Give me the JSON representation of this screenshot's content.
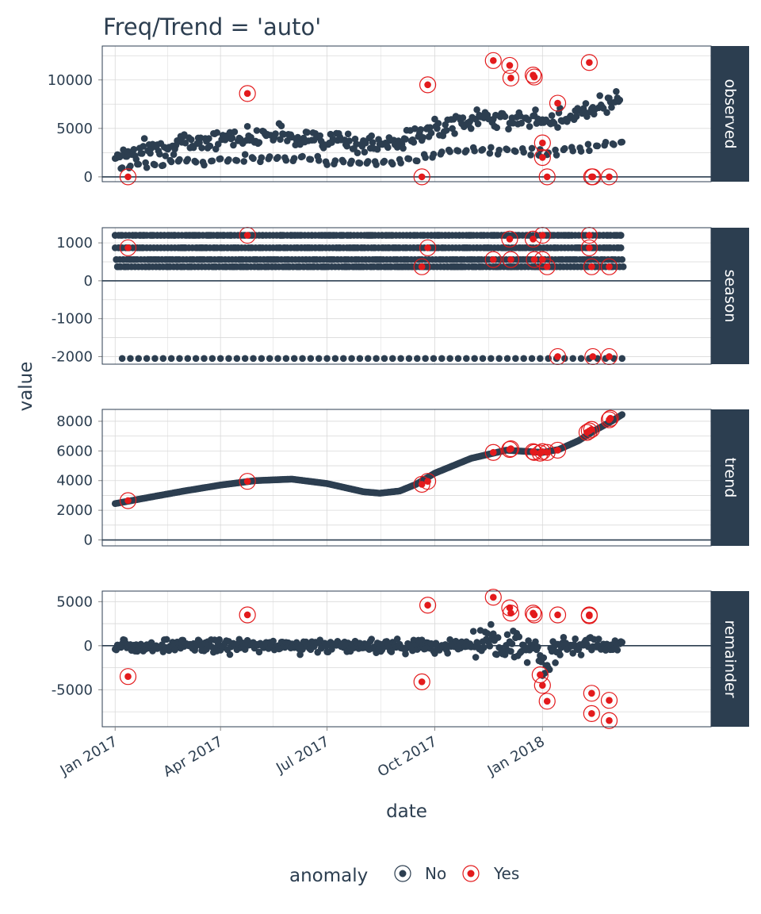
{
  "chart_data": {
    "type": "scatter",
    "title": "Freq/Trend = 'auto'",
    "xlabel": "date",
    "ylabel": "value",
    "x_range": [
      "2016-12-21",
      "2018-05-25"
    ],
    "x_ticks": [
      {
        "date": "2017-01-01",
        "label": "Jan 2017"
      },
      {
        "date": "2017-04-01",
        "label": "Apr 2017"
      },
      {
        "date": "2017-07-01",
        "label": "Jul 2017"
      },
      {
        "date": "2017-10-01",
        "label": "Oct 2017"
      },
      {
        "date": "2018-01-01",
        "label": "Jan 2018"
      }
    ],
    "grid": true,
    "colors": {
      "normal": "#2c3e50",
      "anomaly": "#e31a1c",
      "strip": "#2c3e50",
      "grid": "#d9d9d9",
      "zero_line": "#2c3e50"
    },
    "legend": {
      "title": "anomaly",
      "position": "bottom",
      "entries": [
        {
          "label": "No",
          "color": "#2c3e50"
        },
        {
          "label": "Yes",
          "color": "#e31a1c"
        }
      ]
    },
    "panels": [
      {
        "name": "observed",
        "ylim": [
          -500,
          13500
        ],
        "yticks": [
          0,
          5000,
          10000
        ],
        "ytick_labels": [
          "0",
          "5000",
          "10000"
        ],
        "trend": [
          [
            "2017-01-01",
            2200
          ],
          [
            "2017-02-15",
            3300
          ],
          [
            "2017-04-01",
            3900
          ],
          [
            "2017-05-15",
            4500
          ],
          [
            "2017-07-01",
            3800
          ],
          [
            "2017-08-15",
            3200
          ],
          [
            "2017-09-15",
            4200
          ],
          [
            "2017-10-15",
            5500
          ],
          [
            "2017-11-15",
            6200
          ],
          [
            "2017-12-15",
            5800
          ],
          [
            "2018-01-15",
            6000
          ],
          [
            "2018-02-15",
            7200
          ],
          [
            "2018-03-18",
            8500
          ]
        ],
        "anomalies": [
          [
            "2017-01-12",
            0
          ],
          [
            "2017-04-24",
            8600
          ],
          [
            "2017-09-20",
            0
          ],
          [
            "2017-09-25",
            9500
          ],
          [
            "2017-11-20",
            12000
          ],
          [
            "2017-12-04",
            11500
          ],
          [
            "2017-12-05",
            10200
          ],
          [
            "2017-12-24",
            10500
          ],
          [
            "2017-12-25",
            10300
          ],
          [
            "2018-01-01",
            3500
          ],
          [
            "2018-01-01",
            2000
          ],
          [
            "2018-01-05",
            0
          ],
          [
            "2018-01-14",
            7600
          ],
          [
            "2018-02-10",
            11800
          ],
          [
            "2018-02-12",
            0
          ],
          [
            "2018-02-13",
            0
          ],
          [
            "2018-02-27",
            0
          ]
        ]
      },
      {
        "name": "season",
        "ylim": [
          -2200,
          1400
        ],
        "yticks": [
          -2000,
          -1000,
          0,
          1000
        ],
        "ytick_labels": [
          "-2000",
          "-1000",
          "0",
          "1000"
        ],
        "levels": [
          1200,
          870,
          560,
          370,
          -2050
        ],
        "anomalies": [
          [
            "2017-01-12",
            870
          ],
          [
            "2017-04-24",
            1200
          ],
          [
            "2017-09-20",
            370
          ],
          [
            "2017-09-25",
            870
          ],
          [
            "2017-11-20",
            560
          ],
          [
            "2017-12-04",
            1100
          ],
          [
            "2017-12-05",
            560
          ],
          [
            "2017-12-24",
            1100
          ],
          [
            "2017-12-25",
            560
          ],
          [
            "2018-01-01",
            1200
          ],
          [
            "2018-01-01",
            560
          ],
          [
            "2018-01-05",
            370
          ],
          [
            "2018-01-14",
            -2000
          ],
          [
            "2018-02-10",
            1200
          ],
          [
            "2018-02-10",
            870
          ],
          [
            "2018-02-12",
            370
          ],
          [
            "2018-02-13",
            -2000
          ],
          [
            "2018-02-27",
            370
          ],
          [
            "2018-02-27",
            -2000
          ]
        ]
      },
      {
        "name": "trend",
        "ylim": [
          -400,
          8800
        ],
        "yticks": [
          0,
          2000,
          4000,
          6000,
          8000
        ],
        "ytick_labels": [
          "0",
          "2000",
          "4000",
          "6000",
          "8000"
        ],
        "trend": [
          [
            "2017-01-01",
            2450
          ],
          [
            "2017-02-01",
            2900
          ],
          [
            "2017-03-01",
            3300
          ],
          [
            "2017-04-01",
            3700
          ],
          [
            "2017-05-01",
            4000
          ],
          [
            "2017-06-01",
            4100
          ],
          [
            "2017-07-01",
            3800
          ],
          [
            "2017-08-01",
            3250
          ],
          [
            "2017-08-15",
            3150
          ],
          [
            "2017-09-01",
            3300
          ],
          [
            "2017-09-15",
            3750
          ],
          [
            "2017-10-01",
            4500
          ],
          [
            "2017-11-01",
            5500
          ],
          [
            "2017-12-01",
            6050
          ],
          [
            "2018-01-01",
            5900
          ],
          [
            "2018-01-15",
            6100
          ],
          [
            "2018-02-01",
            6700
          ],
          [
            "2018-02-15",
            7400
          ],
          [
            "2018-03-01",
            8000
          ],
          [
            "2018-03-10",
            8450
          ]
        ],
        "anomalies": [
          [
            "2017-01-12",
            2650
          ],
          [
            "2017-04-24",
            3950
          ],
          [
            "2017-09-20",
            3750
          ],
          [
            "2017-09-25",
            3950
          ],
          [
            "2017-11-20",
            5900
          ],
          [
            "2017-12-04",
            6100
          ],
          [
            "2017-12-05",
            6150
          ],
          [
            "2017-12-24",
            5950
          ],
          [
            "2017-12-25",
            5900
          ],
          [
            "2017-12-30",
            5850
          ],
          [
            "2018-01-01",
            5950
          ],
          [
            "2018-01-05",
            5900
          ],
          [
            "2018-01-14",
            6050
          ],
          [
            "2018-02-08",
            7250
          ],
          [
            "2018-02-10",
            7350
          ],
          [
            "2018-02-12",
            7450
          ],
          [
            "2018-02-27",
            8100
          ],
          [
            "2018-02-28",
            8200
          ]
        ]
      },
      {
        "name": "remainder",
        "ylim": [
          -9200,
          6200
        ],
        "yticks": [
          -5000,
          0,
          5000
        ],
        "ytick_labels": [
          "-5000",
          "0",
          "5000"
        ],
        "anomalies": [
          [
            "2017-01-12",
            -3500
          ],
          [
            "2017-04-24",
            3500
          ],
          [
            "2017-09-20",
            -4100
          ],
          [
            "2017-09-25",
            4600
          ],
          [
            "2017-11-20",
            5500
          ],
          [
            "2017-12-04",
            4300
          ],
          [
            "2017-12-05",
            3700
          ],
          [
            "2017-12-24",
            3700
          ],
          [
            "2017-12-25",
            3500
          ],
          [
            "2017-12-30",
            -3300
          ],
          [
            "2018-01-01",
            -4500
          ],
          [
            "2018-01-05",
            -6300
          ],
          [
            "2018-01-14",
            3500
          ],
          [
            "2018-02-10",
            3500
          ],
          [
            "2018-02-10",
            3400
          ],
          [
            "2018-02-12",
            -5400
          ],
          [
            "2018-02-12",
            -7700
          ],
          [
            "2018-02-27",
            -8500
          ],
          [
            "2018-02-27",
            -6200
          ]
        ]
      }
    ]
  }
}
